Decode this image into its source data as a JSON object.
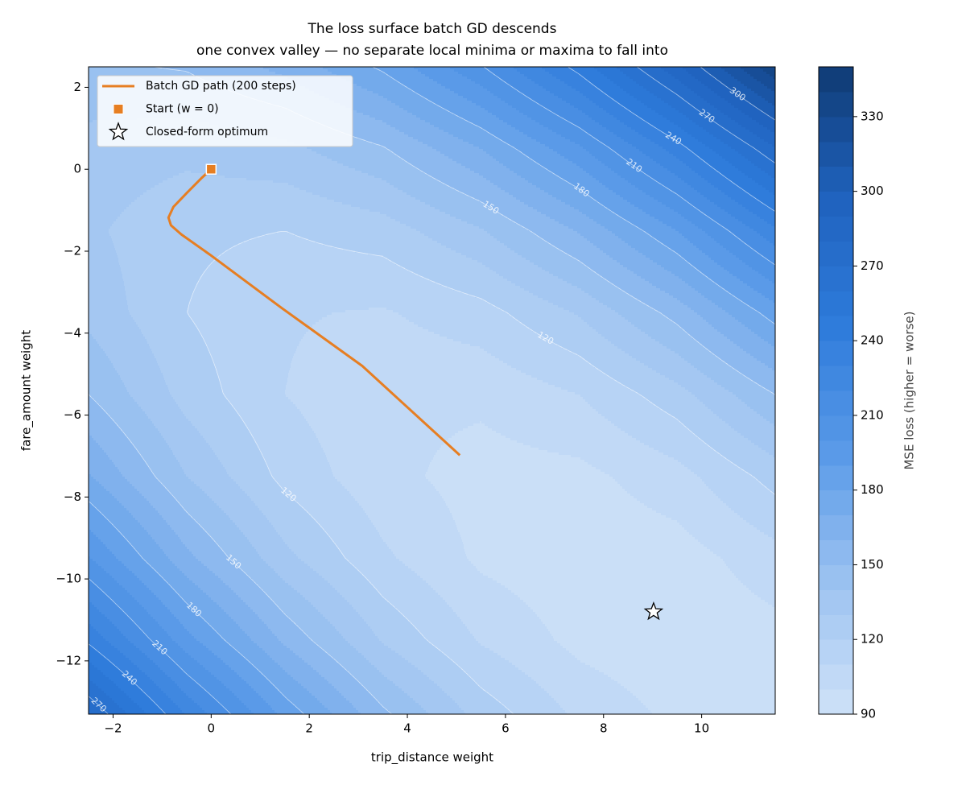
{
  "chart_data": {
    "type": "contour",
    "title": "The loss surface batch GD descends",
    "subtitle": "one convex valley — no separate local minima or maxima to fall into",
    "x_label": "trip_distance weight",
    "y_label": "fare_amount weight",
    "xlim": [
      -2.5,
      11.5
    ],
    "ylim": [
      -13.3,
      2.5
    ],
    "xticks": [
      {
        "value": -2,
        "label": "−2"
      },
      0,
      2,
      4,
      6,
      8,
      10
    ],
    "yticks": [
      2,
      0,
      {
        "value": -2,
        "label": "−2"
      },
      {
        "value": -4,
        "label": "−4"
      },
      {
        "value": -6,
        "label": "−6"
      },
      {
        "value": -8,
        "label": "−8"
      },
      {
        "value": -10,
        "label": "−10"
      },
      {
        "value": -12,
        "label": "−12"
      }
    ],
    "x_grid": [
      -2.5,
      -0.5,
      1.5,
      3.5,
      5.5,
      7.5,
      9.5,
      11.5
    ],
    "y_grid": [
      2.5,
      0.5,
      -1.5,
      -3.5,
      -5.5,
      -7.5,
      -9.5,
      -11.5,
      -13.5
    ],
    "z": [
      [
        148,
        151,
        163,
        182,
        209,
        244,
        288,
        339
      ],
      [
        136,
        133,
        137,
        149,
        170,
        198,
        235,
        279
      ],
      [
        132,
        122,
        120,
        125,
        139,
        161,
        190,
        228
      ],
      [
        137,
        120,
        111,
        109,
        116,
        131,
        154,
        185
      ],
      [
        150,
        126,
        110,
        102,
        102,
        110,
        126,
        150
      ],
      [
        171,
        140,
        117,
        103,
        96,
        97,
        106,
        124
      ],
      [
        201,
        163,
        133,
        112,
        98,
        93,
        95,
        106
      ],
      [
        238,
        194,
        158,
        129,
        109,
        97,
        92,
        96
      ],
      [
        285,
        233,
        190,
        155,
        128,
        109,
        98,
        94
      ]
    ],
    "levels": [
      90,
      100,
      110,
      120,
      130,
      140,
      150,
      160,
      170,
      180,
      190,
      200,
      210,
      220,
      230,
      240,
      250,
      260,
      270,
      280,
      290,
      300,
      310,
      320,
      330,
      340,
      350
    ],
    "colormap": [
      "#cfe2f8",
      "#9dc3f1",
      "#5b9be8",
      "#2e7bdb",
      "#1f62bd",
      "#0f3a73"
    ],
    "contour_levels": [
      120,
      150,
      180,
      210,
      240,
      270,
      300
    ],
    "contour_color": "#ffffff",
    "colorbar": {
      "label": "MSE loss (higher = worse)",
      "ticks": [
        90,
        120,
        150,
        180,
        210,
        240,
        270,
        300,
        330
      ]
    },
    "series": [
      {
        "type": "line",
        "name": "Batch GD path (200 steps)",
        "color": "#e67e22",
        "x": [
          0,
          -0.2,
          -0.49,
          -0.77,
          -0.87,
          -0.82,
          -0.61,
          -0.03,
          1.44,
          3.08,
          5.07
        ],
        "y": [
          0,
          -0.22,
          -0.57,
          -0.92,
          -1.18,
          -1.37,
          -1.59,
          -2.08,
          -3.39,
          -4.8,
          -6.98
        ]
      },
      {
        "type": "marker",
        "marker": "square",
        "name": "Start (w = 0)",
        "color": "#e67e22",
        "x": [
          0
        ],
        "y": [
          0
        ]
      },
      {
        "type": "marker",
        "marker": "star",
        "name": "Closed-form optimum",
        "color": "#ffffff",
        "x": [
          9.02
        ],
        "y": [
          -10.8
        ]
      }
    ],
    "legend": "upper left"
  }
}
